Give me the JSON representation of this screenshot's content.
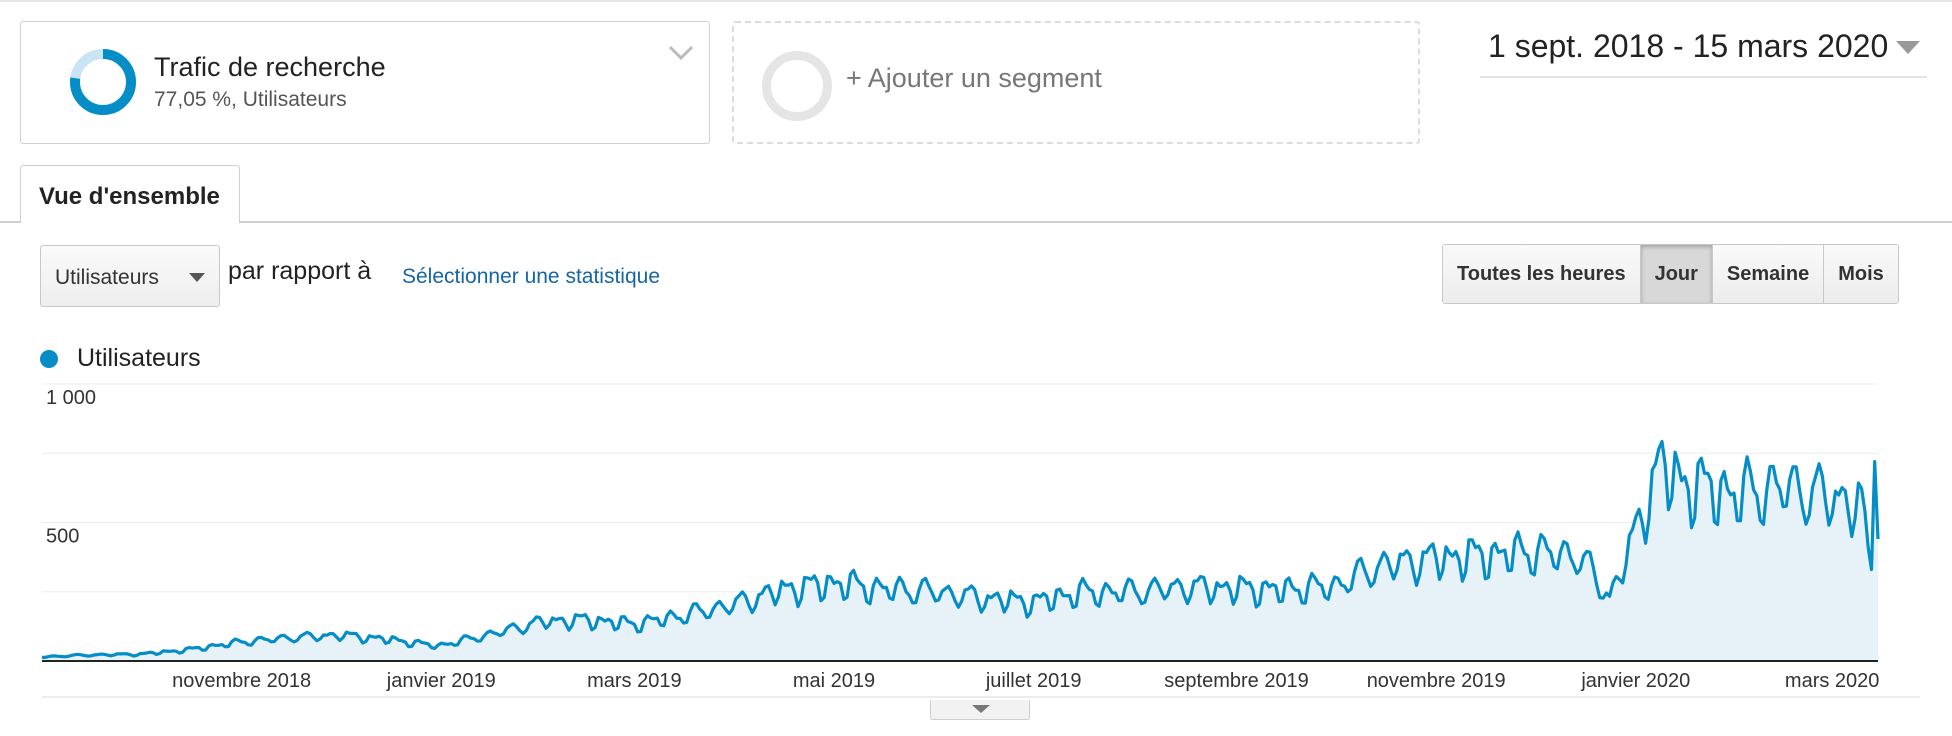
{
  "segments": [
    {
      "title": "Trafic de recherche",
      "subtitle": "77,05 %, Utilisateurs",
      "share": 0.7705,
      "color": "#058dc7"
    }
  ],
  "add_segment_label": "+ Ajouter un segment",
  "date_range": "1 sept. 2018 - 15 mars 2020",
  "tabs": [
    {
      "label": "Vue d'ensemble"
    }
  ],
  "metric_selector": {
    "value": "Utilisateurs"
  },
  "compare": {
    "label": "par rapport à",
    "link": "Sélectionner une statistique"
  },
  "granularity": {
    "options": [
      "Toutes les heures",
      "Jour",
      "Semaine",
      "Mois"
    ],
    "selected": "Jour"
  },
  "chart_data": {
    "type": "area",
    "series": [
      {
        "name": "Utilisateurs",
        "color": "#058dc7",
        "key_points": [
          [
            "2018-09-01",
            15
          ],
          [
            "2018-09-15",
            22
          ],
          [
            "2018-10-01",
            25
          ],
          [
            "2018-10-15",
            40
          ],
          [
            "2018-11-01",
            70
          ],
          [
            "2018-11-15",
            85
          ],
          [
            "2018-12-01",
            95
          ],
          [
            "2018-12-15",
            80
          ],
          [
            "2018-12-31",
            55
          ],
          [
            "2019-01-15",
            95
          ],
          [
            "2019-02-01",
            145
          ],
          [
            "2019-02-15",
            150
          ],
          [
            "2019-03-01",
            135
          ],
          [
            "2019-03-15",
            165
          ],
          [
            "2019-04-01",
            210
          ],
          [
            "2019-04-15",
            260
          ],
          [
            "2019-05-01",
            285
          ],
          [
            "2019-05-15",
            265
          ],
          [
            "2019-06-01",
            255
          ],
          [
            "2019-06-15",
            230
          ],
          [
            "2019-07-01",
            215
          ],
          [
            "2019-07-15",
            250
          ],
          [
            "2019-08-01",
            255
          ],
          [
            "2019-08-15",
            270
          ],
          [
            "2019-09-01",
            265
          ],
          [
            "2019-09-15",
            260
          ],
          [
            "2019-10-01",
            275
          ],
          [
            "2019-10-15",
            350
          ],
          [
            "2019-11-01",
            375
          ],
          [
            "2019-11-15",
            385
          ],
          [
            "2019-12-01",
            400
          ],
          [
            "2019-12-15",
            385
          ],
          [
            "2019-12-24",
            230
          ],
          [
            "2020-01-01",
            470
          ],
          [
            "2020-01-08",
            720
          ],
          [
            "2020-01-15",
            650
          ],
          [
            "2020-02-01",
            610
          ],
          [
            "2020-02-15",
            640
          ],
          [
            "2020-03-01",
            600
          ],
          [
            "2020-03-10",
            570
          ],
          [
            "2020-03-13",
            330
          ],
          [
            "2020-03-14",
            720
          ],
          [
            "2020-03-15",
            440
          ]
        ]
      }
    ],
    "x_ticks": [
      "novembre 2018",
      "janvier 2019",
      "mars 2019",
      "mai 2019",
      "juillet 2019",
      "septembre 2019",
      "novembre 2019",
      "janvier 2020",
      "mars 2020"
    ],
    "x_tick_dates": [
      "2018-11-01",
      "2019-01-01",
      "2019-03-01",
      "2019-05-01",
      "2019-07-01",
      "2019-09-01",
      "2019-11-01",
      "2020-01-01",
      "2020-03-01"
    ],
    "x_range": [
      "2018-09-01",
      "2020-03-15"
    ],
    "y_ticks": [
      {
        "value": 500,
        "label": "500"
      },
      {
        "value": 1000,
        "label": "1 000"
      }
    ],
    "ylim": [
      0,
      1000
    ],
    "grid": true
  }
}
